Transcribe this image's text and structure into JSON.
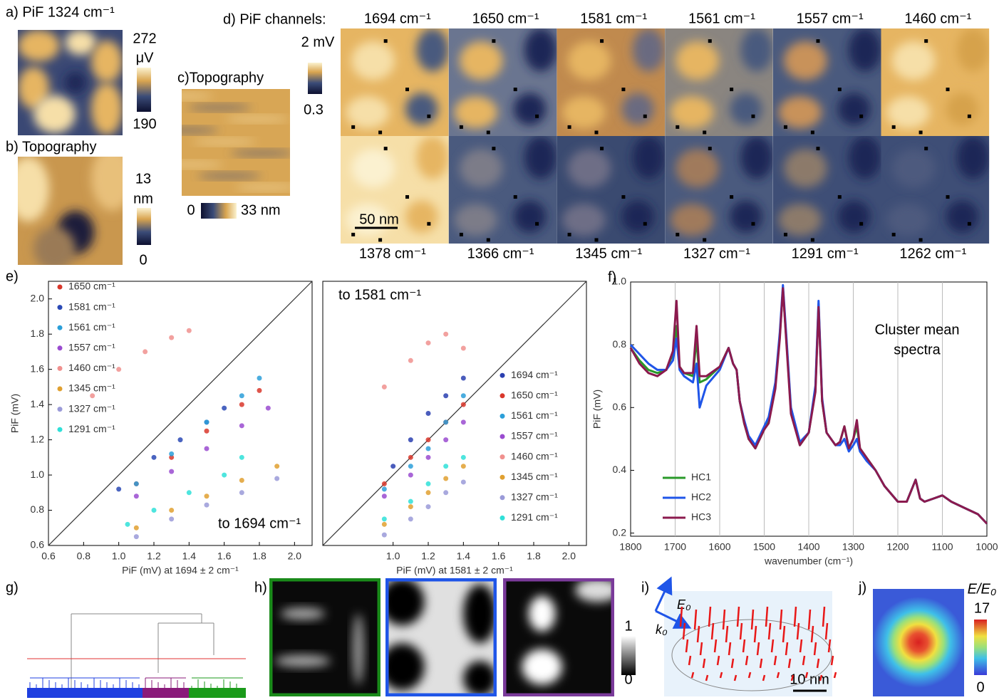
{
  "panel_a": {
    "label": "a) PiF 1324 cm⁻¹",
    "colorbar": [
      "272",
      "μV",
      "190"
    ]
  },
  "panel_b": {
    "label": "b) Topography",
    "colorbar": [
      "13",
      "nm",
      "0"
    ]
  },
  "panel_c": {
    "label": "c)Topography",
    "colorbar": [
      "0",
      "33 nm"
    ]
  },
  "panel_d": {
    "label": "d) PiF channels:",
    "colorbar": [
      "2 mV",
      "0.3"
    ],
    "channels": [
      "1694 cm⁻¹",
      "1650 cm⁻¹",
      "1581 cm⁻¹",
      "1561 cm⁻¹",
      "1557 cm⁻¹",
      "1460 cm⁻¹",
      "1378 cm⁻¹",
      "1366 cm⁻¹",
      "1345 cm⁻¹",
      "1327 cm⁻¹",
      "1291 cm⁻¹",
      "1262 cm⁻¹"
    ],
    "scale_bar": "50 nm"
  },
  "chart_data": [
    {
      "type": "scatter",
      "label": "e)",
      "ylabel": "PiF (mV)",
      "xlabel": "PiF (mV) at 1694 ± 2 cm⁻¹",
      "annotation": "to 1694 cm⁻¹",
      "xlim": [
        0.6,
        2.1
      ],
      "ylim": [
        0.6,
        2.1
      ],
      "xticks": [
        0.6,
        0.8,
        {
          "value": 1,
          "label": "1.0"
        },
        1.2,
        1.4,
        1.6,
        1.8,
        {
          "value": 2,
          "label": "2.0"
        }
      ],
      "yticks": [
        0.6,
        0.8,
        {
          "value": 1,
          "label": "1.0"
        },
        1.2,
        1.4,
        1.6,
        1.8,
        {
          "value": 2,
          "label": "2.0"
        }
      ],
      "legend": "upper left",
      "series": [
        {
          "name": "1650 cm⁻¹",
          "color": "#d9372b",
          "x": [
            1.1,
            1.3,
            1.5,
            1.7,
            1.8
          ],
          "y": [
            0.95,
            1.1,
            1.25,
            1.4,
            1.48
          ]
        },
        {
          "name": "1581 cm⁻¹",
          "color": "#2a49b5",
          "x": [
            1.0,
            1.2,
            1.35,
            1.5,
            1.6
          ],
          "y": [
            0.92,
            1.1,
            1.2,
            1.3,
            1.38
          ]
        },
        {
          "name": "1561 cm⁻¹",
          "color": "#2b9fd9",
          "x": [
            1.1,
            1.3,
            1.5,
            1.7,
            1.8
          ],
          "y": [
            0.95,
            1.12,
            1.3,
            1.45,
            1.55
          ]
        },
        {
          "name": "1557 cm⁻¹",
          "color": "#9a4bd0",
          "x": [
            1.1,
            1.3,
            1.5,
            1.7,
            1.85
          ],
          "y": [
            0.88,
            1.02,
            1.15,
            1.28,
            1.38
          ]
        },
        {
          "name": "1460 cm⁻¹",
          "color": "#f0908e",
          "x": [
            0.85,
            1.0,
            1.15,
            1.3,
            1.4
          ],
          "y": [
            1.45,
            1.6,
            1.7,
            1.78,
            1.82
          ]
        },
        {
          "name": "1345 cm⁻¹",
          "color": "#e0a030",
          "x": [
            1.1,
            1.3,
            1.5,
            1.7,
            1.9
          ],
          "y": [
            0.7,
            0.8,
            0.88,
            0.97,
            1.05
          ]
        },
        {
          "name": "1327 cm⁻¹",
          "color": "#9a9ad8",
          "x": [
            1.1,
            1.3,
            1.5,
            1.7,
            1.9
          ],
          "y": [
            0.65,
            0.75,
            0.83,
            0.9,
            0.98
          ]
        },
        {
          "name": "1291 cm⁻¹",
          "color": "#2fe0d8",
          "x": [
            1.05,
            1.2,
            1.4,
            1.6,
            1.7
          ],
          "y": [
            0.72,
            0.8,
            0.9,
            1.0,
            1.1
          ]
        }
      ]
    },
    {
      "type": "scatter",
      "xlabel": "PiF (mV) at 1581 ± 2 cm⁻¹",
      "annotation": "to 1581 cm⁻¹",
      "xlim": [
        0.6,
        2.1
      ],
      "ylim": [
        0.6,
        2.1
      ],
      "xticks": [
        {
          "value": 1,
          "label": "1.0"
        },
        1.2,
        1.4,
        1.6,
        1.8,
        {
          "value": 2,
          "label": "2.0"
        }
      ],
      "legend": "lower right",
      "series": [
        {
          "name": "1694 cm⁻¹",
          "color": "#2a3fb0",
          "x": [
            1.0,
            1.1,
            1.2,
            1.3,
            1.4
          ],
          "y": [
            1.05,
            1.2,
            1.35,
            1.45,
            1.55
          ]
        },
        {
          "name": "1650 cm⁻¹",
          "color": "#d9372b",
          "x": [
            0.95,
            1.1,
            1.2,
            1.3,
            1.4
          ],
          "y": [
            0.95,
            1.1,
            1.2,
            1.3,
            1.4
          ]
        },
        {
          "name": "1561 cm⁻¹",
          "color": "#2b9fd9",
          "x": [
            0.95,
            1.1,
            1.2,
            1.3,
            1.4
          ],
          "y": [
            0.92,
            1.05,
            1.15,
            1.3,
            1.45
          ]
        },
        {
          "name": "1557 cm⁻¹",
          "color": "#9a4bd0",
          "x": [
            0.95,
            1.1,
            1.2,
            1.3,
            1.4
          ],
          "y": [
            0.88,
            1.0,
            1.1,
            1.2,
            1.3
          ]
        },
        {
          "name": "1460 cm⁻¹",
          "color": "#f0908e",
          "x": [
            0.95,
            1.1,
            1.2,
            1.3,
            1.4
          ],
          "y": [
            1.5,
            1.65,
            1.75,
            1.8,
            1.72
          ]
        },
        {
          "name": "1345 cm⁻¹",
          "color": "#e0a030",
          "x": [
            0.95,
            1.1,
            1.2,
            1.3,
            1.4
          ],
          "y": [
            0.72,
            0.82,
            0.9,
            0.98,
            1.05
          ]
        },
        {
          "name": "1327 cm⁻¹",
          "color": "#9a9ad8",
          "x": [
            0.95,
            1.1,
            1.2,
            1.3,
            1.4
          ],
          "y": [
            0.66,
            0.75,
            0.82,
            0.9,
            0.96
          ]
        },
        {
          "name": "1291 cm⁻¹",
          "color": "#2fe0d8",
          "x": [
            0.95,
            1.1,
            1.2,
            1.3,
            1.4
          ],
          "y": [
            0.75,
            0.85,
            0.95,
            1.05,
            1.1
          ]
        }
      ]
    },
    {
      "type": "line",
      "label": "f)",
      "ylabel": "PiF (mV)",
      "xlabel": "wavenumber (cm⁻¹)",
      "annotation": [
        "Cluster mean",
        "spectra"
      ],
      "xlim": [
        1800,
        1000
      ],
      "ylim": [
        0.19,
        1.0
      ],
      "xticks": [
        1800,
        1700,
        1600,
        1500,
        1400,
        1300,
        1200,
        1100,
        1000
      ],
      "yticks": [
        0.2,
        0.4,
        0.6,
        0.8,
        {
          "value": 1,
          "label": "1.0"
        }
      ],
      "grid": "x",
      "legend": "lower left",
      "x": [
        1800,
        1780,
        1760,
        1740,
        1720,
        1705,
        1697,
        1690,
        1680,
        1660,
        1652,
        1645,
        1630,
        1600,
        1580,
        1570,
        1562,
        1555,
        1545,
        1535,
        1520,
        1500,
        1490,
        1475,
        1465,
        1458,
        1450,
        1440,
        1420,
        1400,
        1385,
        1378,
        1370,
        1360,
        1340,
        1330,
        1320,
        1310,
        1300,
        1292,
        1285,
        1270,
        1250,
        1230,
        1200,
        1180,
        1160,
        1150,
        1140,
        1120,
        1100,
        1080,
        1050,
        1020,
        1000
      ],
      "series": [
        {
          "name": "HC1",
          "color": "#2a9a2a",
          "values": [
            0.79,
            0.75,
            0.72,
            0.71,
            0.72,
            0.77,
            0.86,
            0.73,
            0.71,
            0.7,
            0.82,
            0.68,
            0.69,
            0.73,
            0.79,
            0.74,
            0.72,
            0.62,
            0.55,
            0.5,
            0.47,
            0.53,
            0.56,
            0.67,
            0.83,
            0.98,
            0.81,
            0.59,
            0.48,
            0.52,
            0.66,
            0.93,
            0.62,
            0.52,
            0.48,
            0.49,
            0.54,
            0.47,
            0.5,
            0.54,
            0.47,
            0.44,
            0.4,
            0.35,
            0.3,
            0.3,
            0.37,
            0.31,
            0.3,
            0.31,
            0.32,
            0.3,
            0.28,
            0.26,
            0.23
          ]
        },
        {
          "name": "HC2",
          "color": "#1f55e8",
          "values": [
            0.8,
            0.77,
            0.74,
            0.72,
            0.72,
            0.75,
            0.82,
            0.72,
            0.7,
            0.68,
            0.74,
            0.6,
            0.67,
            0.72,
            0.79,
            0.74,
            0.72,
            0.62,
            0.56,
            0.51,
            0.48,
            0.54,
            0.57,
            0.68,
            0.84,
            0.99,
            0.82,
            0.6,
            0.49,
            0.52,
            0.67,
            0.94,
            0.63,
            0.52,
            0.48,
            0.48,
            0.5,
            0.46,
            0.48,
            0.5,
            0.46,
            0.43,
            0.4,
            0.35,
            0.3,
            0.3,
            0.37,
            0.31,
            0.3,
            0.31,
            0.32,
            0.3,
            0.28,
            0.26,
            0.23
          ]
        },
        {
          "name": "HC3",
          "color": "#8b1a4e",
          "values": [
            0.79,
            0.74,
            0.71,
            0.7,
            0.72,
            0.78,
            0.94,
            0.73,
            0.71,
            0.71,
            0.86,
            0.7,
            0.7,
            0.73,
            0.79,
            0.74,
            0.72,
            0.62,
            0.55,
            0.5,
            0.47,
            0.53,
            0.55,
            0.66,
            0.82,
            0.98,
            0.8,
            0.58,
            0.48,
            0.52,
            0.65,
            0.92,
            0.62,
            0.52,
            0.48,
            0.49,
            0.54,
            0.47,
            0.5,
            0.56,
            0.47,
            0.44,
            0.4,
            0.35,
            0.3,
            0.3,
            0.37,
            0.31,
            0.3,
            0.31,
            0.32,
            0.3,
            0.28,
            0.26,
            0.23
          ]
        }
      ]
    }
  ],
  "panel_g": {
    "label": "g)"
  },
  "panel_h": {
    "label": "h)",
    "colorbar": [
      "1",
      "0"
    ]
  },
  "panel_i": {
    "label": "i)",
    "field": "E₀",
    "wavevector": "k₀",
    "scale_bar": "10 nm"
  },
  "panel_j": {
    "label": "j)",
    "colorbar_title": "E/E₀",
    "colorbar": [
      "17",
      "0"
    ]
  }
}
